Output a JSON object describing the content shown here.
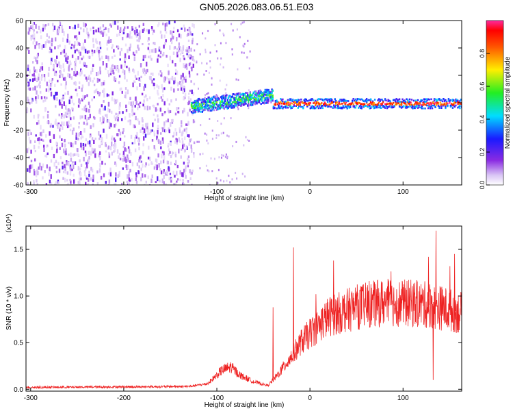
{
  "title": "GN05.2026.083.06.51.E03",
  "colors": {
    "snr_line": "#ee2222",
    "axis": "#000000",
    "background": "#ffffff"
  },
  "chart_data": [
    {
      "type": "heatmap",
      "title": "GN05.2026.083.06.51.E03",
      "xlabel": "Height of straight line (km)",
      "ylabel": "Frequency (Hz)",
      "xlim": [
        -305,
        163
      ],
      "ylim": [
        -60,
        60
      ],
      "xticks": [
        -300,
        -200,
        -100,
        0,
        100
      ],
      "xtick_labels": [
        "-300",
        "-200",
        "-100",
        "0",
        "100"
      ],
      "yticks": [
        -60,
        -40,
        -20,
        0,
        20,
        40,
        60
      ],
      "ytick_labels": [
        "-60",
        "-40",
        "-20",
        "0",
        "20",
        "40",
        "60"
      ],
      "colorbar": {
        "label": "Normalized spectral amplitude",
        "range": [
          0,
          1
        ],
        "ticks": [
          0.0,
          0.2,
          0.4,
          0.6,
          0.8
        ],
        "tick_labels": [
          "0.0",
          "0.2",
          "0.4",
          "0.6",
          "0.8"
        ],
        "colormap": "rainbow (violet → blue → cyan → green → yellow → red)"
      },
      "regions": [
        {
          "x_range": [
            -305,
            -125
          ],
          "freq_range": [
            -60,
            60
          ],
          "amplitude": 0.1,
          "pattern": "broadband noise"
        },
        {
          "x_range": [
            -128,
            -40
          ],
          "freq_center": [
            -2,
            6
          ],
          "amplitude": 0.4,
          "pattern": "narrowband band rising with height"
        },
        {
          "x_range": [
            -40,
            163
          ],
          "freq_center": [
            0,
            0
          ],
          "amplitude": 0.95,
          "pattern": "narrow line at 0 Hz"
        }
      ],
      "grid": false
    },
    {
      "type": "line",
      "xlabel": "Height of straight line (km)",
      "ylabel": "SNR (10 * v/v)",
      "y_multiplier": "(x10⁴)",
      "xlim": [
        -305,
        163
      ],
      "ylim": [
        -0.02,
        1.75
      ],
      "xticks": [
        -300,
        -200,
        -100,
        0,
        100
      ],
      "xtick_labels": [
        "-300",
        "-200",
        "-100",
        "0",
        "100"
      ],
      "yticks": [
        0.0,
        0.5,
        1.0,
        1.5
      ],
      "ytick_labels": [
        "0.0",
        "0.5",
        "1.0",
        "1.5"
      ],
      "series": [
        {
          "color": "#ee2222",
          "envelope": [
            {
              "x": -305,
              "y": 0.02
            },
            {
              "x": -130,
              "y": 0.03
            },
            {
              "x": -110,
              "y": 0.06
            },
            {
              "x": -95,
              "y": 0.2
            },
            {
              "x": -85,
              "y": 0.24
            },
            {
              "x": -75,
              "y": 0.15
            },
            {
              "x": -60,
              "y": 0.08
            },
            {
              "x": -45,
              "y": 0.04
            },
            {
              "x": -35,
              "y": 0.15
            },
            {
              "x": -20,
              "y": 0.35
            },
            {
              "x": -10,
              "y": 0.5
            },
            {
              "x": 0,
              "y": 0.6
            },
            {
              "x": 20,
              "y": 0.78
            },
            {
              "x": 50,
              "y": 0.88
            },
            {
              "x": 80,
              "y": 0.93
            },
            {
              "x": 110,
              "y": 0.92
            },
            {
              "x": 130,
              "y": 0.9
            },
            {
              "x": 150,
              "y": 0.85
            },
            {
              "x": 163,
              "y": 0.82
            }
          ],
          "spikes": [
            {
              "x": -18,
              "y": 1.52
            },
            {
              "x": -40,
              "y": 0.88
            },
            {
              "x": 25,
              "y": 1.38
            },
            {
              "x": 127,
              "y": 1.42
            },
            {
              "x": 135,
              "y": 1.7
            },
            {
              "x": 150,
              "y": 1.32
            },
            {
              "x": 155,
              "y": 1.45
            },
            {
              "x": 132,
              "y": 0.1
            }
          ]
        }
      ],
      "grid": false
    }
  ]
}
